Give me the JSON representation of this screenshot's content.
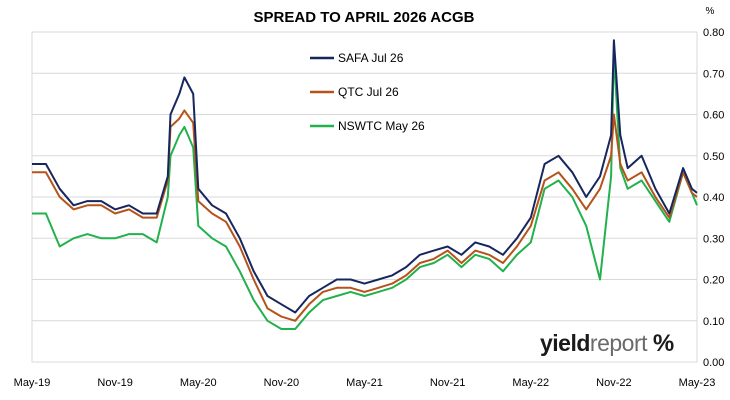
{
  "chart_data": {
    "type": "line",
    "title": "SPREAD TO APRIL 2026 ACGB",
    "y_unit": "%",
    "xlabel": "",
    "ylabel": "",
    "ylim": [
      0,
      0.8
    ],
    "y_ticks": [
      "0.00",
      "0.10",
      "0.20",
      "0.30",
      "0.40",
      "0.50",
      "0.60",
      "0.70",
      "0.80"
    ],
    "x_range": [
      "2019-05",
      "2023-05"
    ],
    "x_ticks": [
      "May-19",
      "Nov-19",
      "May-20",
      "Nov-20",
      "May-21",
      "Nov-21",
      "May-22",
      "Nov-22",
      "May-23"
    ],
    "grid": true,
    "legend_position": "top-center",
    "series": [
      {
        "name": "SAFA Jul 26",
        "color": "#17275e",
        "points": [
          [
            "2019-05",
            0.48
          ],
          [
            "2019-06",
            0.48
          ],
          [
            "2019-07",
            0.42
          ],
          [
            "2019-08",
            0.38
          ],
          [
            "2019-09",
            0.39
          ],
          [
            "2019-10",
            0.39
          ],
          [
            "2019-11",
            0.37
          ],
          [
            "2019-12",
            0.38
          ],
          [
            "2020-01",
            0.36
          ],
          [
            "2020-02",
            0.36
          ],
          [
            "2020-02-25",
            0.45
          ],
          [
            "2020-03",
            0.6
          ],
          [
            "2020-03-20",
            0.65
          ],
          [
            "2020-04",
            0.69
          ],
          [
            "2020-04-20",
            0.65
          ],
          [
            "2020-05",
            0.42
          ],
          [
            "2020-06",
            0.38
          ],
          [
            "2020-07",
            0.36
          ],
          [
            "2020-08",
            0.3
          ],
          [
            "2020-09",
            0.22
          ],
          [
            "2020-10",
            0.16
          ],
          [
            "2020-11",
            0.14
          ],
          [
            "2020-12",
            0.12
          ],
          [
            "2021-01",
            0.16
          ],
          [
            "2021-02",
            0.18
          ],
          [
            "2021-03",
            0.2
          ],
          [
            "2021-04",
            0.2
          ],
          [
            "2021-05",
            0.19
          ],
          [
            "2021-06",
            0.2
          ],
          [
            "2021-07",
            0.21
          ],
          [
            "2021-08",
            0.23
          ],
          [
            "2021-09",
            0.26
          ],
          [
            "2021-10",
            0.27
          ],
          [
            "2021-11",
            0.28
          ],
          [
            "2021-12",
            0.26
          ],
          [
            "2022-01",
            0.29
          ],
          [
            "2022-02",
            0.28
          ],
          [
            "2022-03",
            0.26
          ],
          [
            "2022-04",
            0.3
          ],
          [
            "2022-05",
            0.35
          ],
          [
            "2022-06",
            0.48
          ],
          [
            "2022-07",
            0.5
          ],
          [
            "2022-08",
            0.46
          ],
          [
            "2022-09",
            0.4
          ],
          [
            "2022-10",
            0.45
          ],
          [
            "2022-10-25",
            0.55
          ],
          [
            "2022-11",
            0.78
          ],
          [
            "2022-11-15",
            0.55
          ],
          [
            "2022-12",
            0.47
          ],
          [
            "2023-01",
            0.5
          ],
          [
            "2023-02",
            0.42
          ],
          [
            "2023-03",
            0.36
          ],
          [
            "2023-04",
            0.47
          ],
          [
            "2023-04-20",
            0.42
          ],
          [
            "2023-05",
            0.41
          ]
        ]
      },
      {
        "name": "QTC Jul 26",
        "color": "#b5531a",
        "points": [
          [
            "2019-05",
            0.46
          ],
          [
            "2019-06",
            0.46
          ],
          [
            "2019-07",
            0.4
          ],
          [
            "2019-08",
            0.37
          ],
          [
            "2019-09",
            0.38
          ],
          [
            "2019-10",
            0.38
          ],
          [
            "2019-11",
            0.36
          ],
          [
            "2019-12",
            0.37
          ],
          [
            "2020-01",
            0.35
          ],
          [
            "2020-02",
            0.35
          ],
          [
            "2020-02-25",
            0.44
          ],
          [
            "2020-03",
            0.57
          ],
          [
            "2020-03-20",
            0.59
          ],
          [
            "2020-04",
            0.61
          ],
          [
            "2020-04-20",
            0.58
          ],
          [
            "2020-05",
            0.39
          ],
          [
            "2020-06",
            0.36
          ],
          [
            "2020-07",
            0.34
          ],
          [
            "2020-08",
            0.28
          ],
          [
            "2020-09",
            0.2
          ],
          [
            "2020-10",
            0.13
          ],
          [
            "2020-11",
            0.11
          ],
          [
            "2020-12",
            0.1
          ],
          [
            "2021-01",
            0.14
          ],
          [
            "2021-02",
            0.17
          ],
          [
            "2021-03",
            0.18
          ],
          [
            "2021-04",
            0.18
          ],
          [
            "2021-05",
            0.17
          ],
          [
            "2021-06",
            0.18
          ],
          [
            "2021-07",
            0.19
          ],
          [
            "2021-08",
            0.21
          ],
          [
            "2021-09",
            0.24
          ],
          [
            "2021-10",
            0.25
          ],
          [
            "2021-11",
            0.27
          ],
          [
            "2021-12",
            0.24
          ],
          [
            "2022-01",
            0.27
          ],
          [
            "2022-02",
            0.26
          ],
          [
            "2022-03",
            0.24
          ],
          [
            "2022-04",
            0.28
          ],
          [
            "2022-05",
            0.33
          ],
          [
            "2022-06",
            0.44
          ],
          [
            "2022-07",
            0.46
          ],
          [
            "2022-08",
            0.42
          ],
          [
            "2022-09",
            0.37
          ],
          [
            "2022-10",
            0.42
          ],
          [
            "2022-10-25",
            0.5
          ],
          [
            "2022-11",
            0.6
          ],
          [
            "2022-11-15",
            0.48
          ],
          [
            "2022-12",
            0.44
          ],
          [
            "2023-01",
            0.46
          ],
          [
            "2023-02",
            0.4
          ],
          [
            "2023-03",
            0.35
          ],
          [
            "2023-04",
            0.46
          ],
          [
            "2023-04-20",
            0.41
          ],
          [
            "2023-05",
            0.4
          ]
        ]
      },
      {
        "name": "NSWTC May 26",
        "color": "#22b14c",
        "points": [
          [
            "2019-05",
            0.36
          ],
          [
            "2019-06",
            0.36
          ],
          [
            "2019-07",
            0.28
          ],
          [
            "2019-08",
            0.3
          ],
          [
            "2019-09",
            0.31
          ],
          [
            "2019-10",
            0.3
          ],
          [
            "2019-11",
            0.3
          ],
          [
            "2019-12",
            0.31
          ],
          [
            "2020-01",
            0.31
          ],
          [
            "2020-02",
            0.29
          ],
          [
            "2020-02-25",
            0.4
          ],
          [
            "2020-03",
            0.5
          ],
          [
            "2020-03-20",
            0.55
          ],
          [
            "2020-04",
            0.57
          ],
          [
            "2020-04-20",
            0.52
          ],
          [
            "2020-05",
            0.33
          ],
          [
            "2020-06",
            0.3
          ],
          [
            "2020-07",
            0.28
          ],
          [
            "2020-08",
            0.22
          ],
          [
            "2020-09",
            0.15
          ],
          [
            "2020-10",
            0.1
          ],
          [
            "2020-11",
            0.08
          ],
          [
            "2020-12",
            0.08
          ],
          [
            "2021-01",
            0.12
          ],
          [
            "2021-02",
            0.15
          ],
          [
            "2021-03",
            0.16
          ],
          [
            "2021-04",
            0.17
          ],
          [
            "2021-05",
            0.16
          ],
          [
            "2021-06",
            0.17
          ],
          [
            "2021-07",
            0.18
          ],
          [
            "2021-08",
            0.2
          ],
          [
            "2021-09",
            0.23
          ],
          [
            "2021-10",
            0.24
          ],
          [
            "2021-11",
            0.26
          ],
          [
            "2021-12",
            0.23
          ],
          [
            "2022-01",
            0.26
          ],
          [
            "2022-02",
            0.25
          ],
          [
            "2022-03",
            0.22
          ],
          [
            "2022-04",
            0.26
          ],
          [
            "2022-05",
            0.29
          ],
          [
            "2022-06",
            0.42
          ],
          [
            "2022-07",
            0.44
          ],
          [
            "2022-08",
            0.4
          ],
          [
            "2022-09",
            0.33
          ],
          [
            "2022-10",
            0.2
          ],
          [
            "2022-10-25",
            0.45
          ],
          [
            "2022-11",
            0.75
          ],
          [
            "2022-11-15",
            0.47
          ],
          [
            "2022-12",
            0.42
          ],
          [
            "2023-01",
            0.44
          ],
          [
            "2023-02",
            0.39
          ],
          [
            "2023-03",
            0.34
          ],
          [
            "2023-04",
            0.46
          ],
          [
            "2023-04-20",
            0.41
          ],
          [
            "2023-05",
            0.38
          ]
        ]
      }
    ]
  },
  "logo": {
    "word1": "yield",
    "word2": "report",
    "mark": "%"
  }
}
